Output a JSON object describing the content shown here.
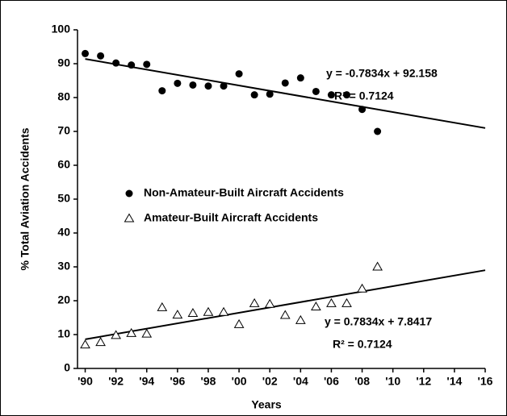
{
  "chart_data": {
    "type": "scatter",
    "x_label": "Years",
    "y_label": "% Total Aviation Accidents",
    "x": [
      1990,
      1991,
      1992,
      1993,
      1994,
      1995,
      1996,
      1997,
      1998,
      1999,
      2000,
      2001,
      2002,
      2003,
      2004,
      2005,
      2006,
      2007,
      2008,
      2009
    ],
    "series": [
      {
        "name": "Non-Amateur-Built Aircraft Accidents",
        "color": "#000000",
        "marker": "circle",
        "values": [
          93,
          92.3,
          90.2,
          89.6,
          89.8,
          82,
          84.2,
          83.7,
          83.4,
          83.4,
          87,
          80.8,
          81,
          84.3,
          85.8,
          81.8,
          80.8,
          80.8,
          76.5,
          70
        ]
      },
      {
        "name": "Amateur-Built Aircraft Accidents",
        "color": "#000000",
        "marker": "triangle",
        "values": [
          7,
          7.7,
          9.8,
          10.4,
          10.2,
          18,
          15.8,
          16.3,
          16.6,
          16.6,
          13,
          19.2,
          19,
          15.7,
          14.2,
          18.2,
          19.2,
          19.2,
          23.5,
          30
        ]
      }
    ],
    "trendlines": [
      {
        "x": [
          1990,
          2016
        ],
        "values": [
          91.4,
          71.0
        ],
        "equation": "y = -0.7834x + 92.158",
        "r2": "R² = 0.7124"
      },
      {
        "x": [
          1990,
          2016
        ],
        "values": [
          8.6,
          29.0
        ],
        "equation": "y = 0.7834x + 7.8417",
        "r2": "R² = 0.7124"
      }
    ],
    "xlim": [
      1989.5,
      2016
    ],
    "xticks": [
      {
        "value": 1990,
        "label": "'90"
      },
      {
        "value": 1992,
        "label": "'92"
      },
      {
        "value": 1994,
        "label": "'94"
      },
      {
        "value": 1996,
        "label": "'96"
      },
      {
        "value": 1998,
        "label": "'98"
      },
      {
        "value": 2000,
        "label": "'00"
      },
      {
        "value": 2002,
        "label": "'02"
      },
      {
        "value": 2004,
        "label": "'04"
      },
      {
        "value": 2006,
        "label": "'06"
      },
      {
        "value": 2008,
        "label": "'08"
      },
      {
        "value": 2010,
        "label": "'10"
      },
      {
        "value": 2012,
        "label": "'12"
      },
      {
        "value": 2014,
        "label": "'14"
      },
      {
        "value": 2016,
        "label": "'16"
      }
    ],
    "ylim": [
      0,
      100
    ],
    "yticks": [
      0,
      10,
      20,
      30,
      40,
      50,
      60,
      70,
      80,
      90,
      100
    ],
    "grid": false
  }
}
